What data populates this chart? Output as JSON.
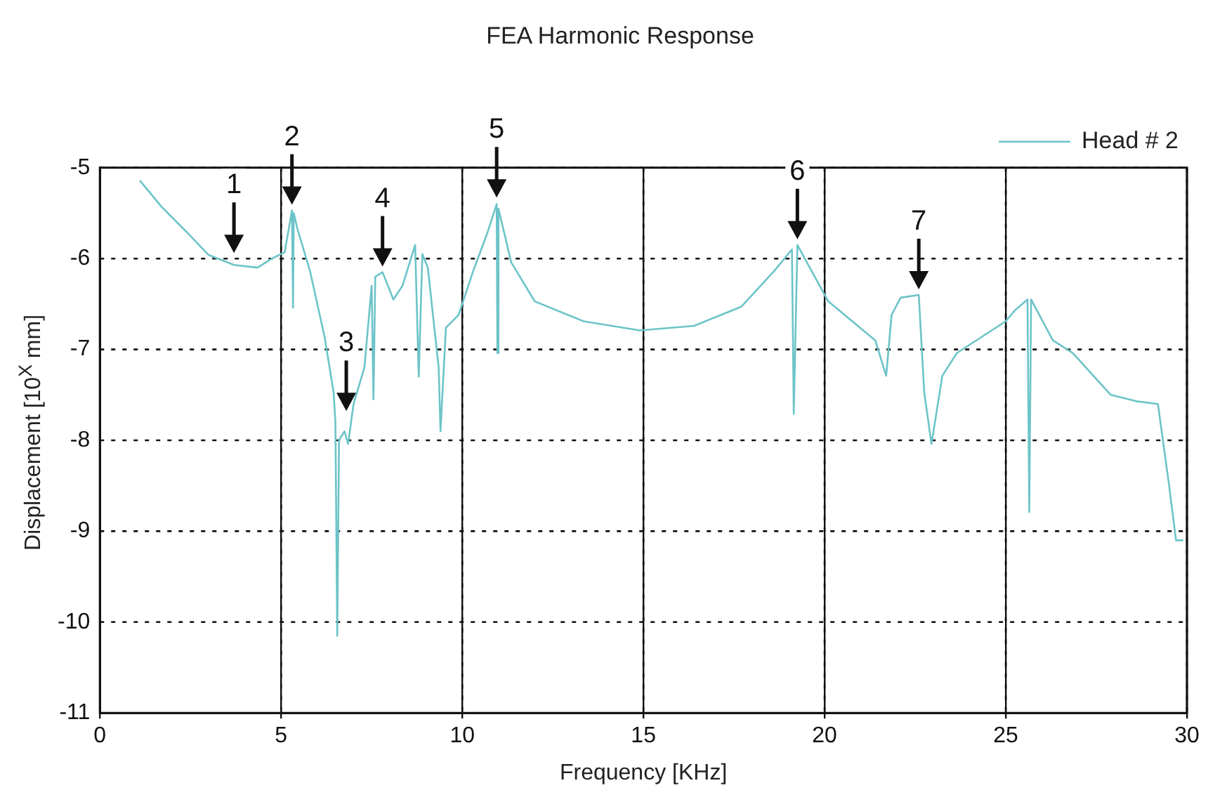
{
  "chart_data": {
    "type": "line",
    "title": "FEA Harmonic Response",
    "xlabel": "Frequency [KHz]",
    "ylabel": "Displacement [10$^{X}$ mm]",
    "xlim": [
      0,
      30
    ],
    "ylim": [
      -11,
      -5
    ],
    "xticks": [
      0,
      5,
      10,
      15,
      20,
      25,
      30
    ],
    "yticks": [
      -11,
      -10,
      -9,
      -8,
      -7,
      -6,
      -5
    ],
    "grid": true,
    "legend": "top right",
    "marker": "none",
    "line_style": "solid",
    "series": [
      {
        "name": "Head # 2",
        "color": "#6cc4c8",
        "x": [
          1.1,
          1.7,
          2.4,
          3.0,
          3.7,
          4.35,
          4.75,
          5.1,
          5.3,
          5.33,
          5.35,
          5.45,
          5.8,
          6.2,
          6.45,
          6.5,
          6.55,
          6.6,
          6.75,
          6.85,
          7.0,
          7.3,
          7.5,
          7.55,
          7.6,
          7.8,
          8.1,
          8.35,
          8.7,
          8.8,
          8.9,
          9.05,
          9.35,
          9.4,
          9.55,
          9.9,
          10.3,
          10.7,
          10.95,
          10.97,
          11.0,
          11.35,
          12.0,
          13.35,
          14.9,
          16.4,
          17.7,
          18.6,
          19.1,
          19.15,
          19.25,
          20.1,
          21.4,
          21.7,
          21.85,
          22.1,
          22.6,
          22.75,
          22.95,
          23.25,
          23.65,
          25.0,
          25.25,
          25.6,
          25.65,
          25.7,
          26.3,
          26.85,
          27.9,
          28.6,
          29.2,
          29.5,
          29.7,
          29.9
        ],
        "values": [
          -5.14,
          -5.43,
          -5.71,
          -5.96,
          -6.07,
          -6.1,
          -6.0,
          -5.93,
          -5.47,
          -6.54,
          -5.5,
          -5.67,
          -6.14,
          -6.86,
          -7.47,
          -7.8,
          -10.15,
          -8.0,
          -7.9,
          -8.04,
          -7.6,
          -7.2,
          -6.3,
          -7.55,
          -6.2,
          -6.15,
          -6.45,
          -6.3,
          -5.85,
          -7.3,
          -5.95,
          -6.1,
          -7.2,
          -7.9,
          -6.76,
          -6.62,
          -6.14,
          -5.71,
          -5.4,
          -7.04,
          -5.45,
          -6.04,
          -6.47,
          -6.69,
          -6.79,
          -6.74,
          -6.53,
          -6.14,
          -5.9,
          -7.71,
          -5.85,
          -6.47,
          -6.9,
          -7.29,
          -6.62,
          -6.43,
          -6.4,
          -7.47,
          -8.04,
          -7.29,
          -7.04,
          -6.69,
          -6.57,
          -6.45,
          -8.79,
          -6.45,
          -6.9,
          -7.04,
          -7.5,
          -7.57,
          -7.6,
          -8.47,
          -9.1,
          -9.1
        ]
      }
    ],
    "annotations": [
      {
        "text": "1",
        "x": 3.7,
        "y": -6.0
      },
      {
        "text": "2",
        "x": 5.3,
        "y": -5.47
      },
      {
        "text": "3",
        "x": 6.8,
        "y": -7.74
      },
      {
        "text": "4",
        "x": 7.8,
        "y": -6.15
      },
      {
        "text": "5",
        "x": 10.95,
        "y": -5.39
      },
      {
        "text": "6",
        "x": 19.25,
        "y": -5.85
      },
      {
        "text": "7",
        "x": 22.6,
        "y": -6.4
      }
    ]
  }
}
